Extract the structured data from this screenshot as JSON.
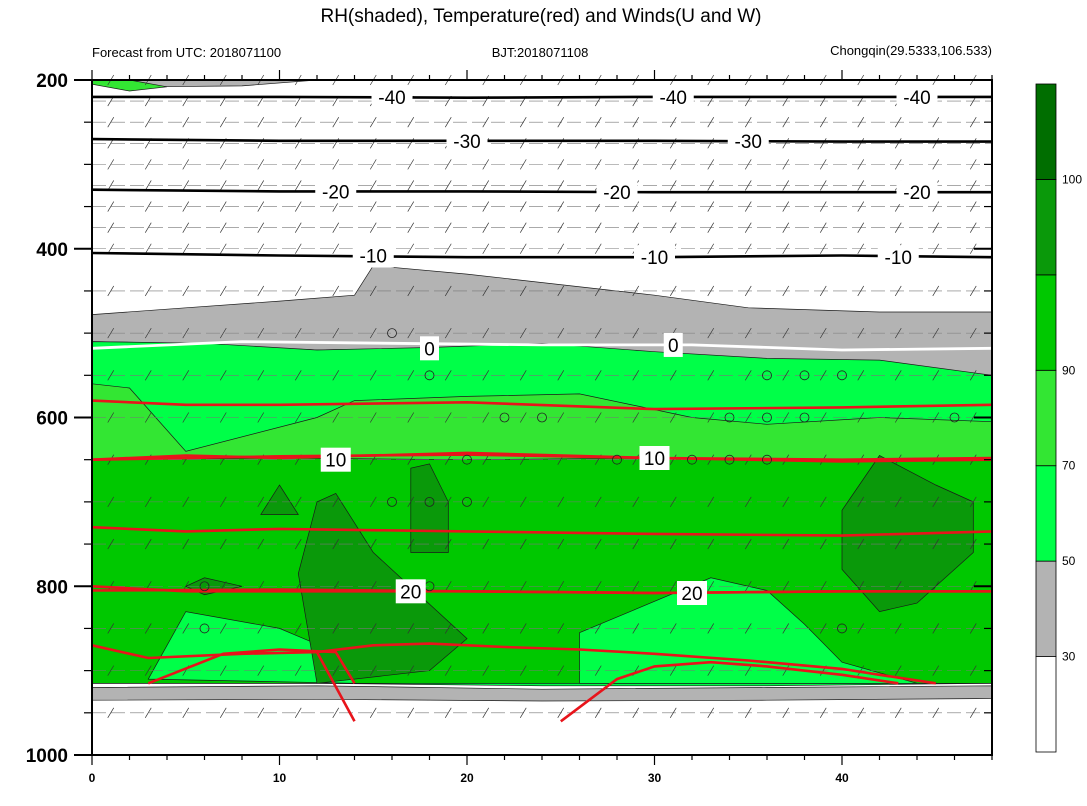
{
  "chart_data": {
    "type": "heatmap",
    "title": "RH(shaded), Temperature(red) and Winds(U and W)",
    "subtitle_left": "Forecast from UTC: 2018071100",
    "subtitle_center": "BJT:2018071108",
    "subtitle_right": "Chongqin(29.5333,106.533)",
    "x_range": [
      0,
      48
    ],
    "x_ticks": [
      0,
      10,
      20,
      30,
      40
    ],
    "y_range": [
      200,
      1000
    ],
    "y_ticks": [
      200,
      400,
      600,
      800,
      1000
    ],
    "colorbar": {
      "levels": [
        30,
        50,
        70,
        90,
        100
      ],
      "level_labels": [
        "30",
        "50",
        "70",
        "90",
        "100"
      ],
      "colors": [
        "#ffffff",
        "#b3b3b3",
        "#00ff48",
        "#33e633",
        "#00c800",
        "#0a990a",
        "#006e00"
      ]
    },
    "rh_regions": [
      {
        "class": 1,
        "points": [
          [
            0,
            200
          ],
          [
            3,
            208
          ],
          [
            8,
            207
          ],
          [
            12,
            200
          ]
        ]
      },
      {
        "class": 3,
        "points": [
          [
            0,
            200
          ],
          [
            0,
            205
          ],
          [
            2,
            213
          ],
          [
            4,
            208
          ],
          [
            2,
            200
          ]
        ]
      },
      {
        "class": 1,
        "points": [
          [
            14,
            455
          ],
          [
            15,
            420
          ],
          [
            20,
            430
          ],
          [
            30,
            455
          ],
          [
            35,
            470
          ],
          [
            42,
            475
          ],
          [
            48,
            475
          ],
          [
            48,
            550
          ],
          [
            40,
            540
          ],
          [
            32,
            535
          ],
          [
            28,
            522
          ],
          [
            18,
            518
          ],
          [
            12,
            520
          ],
          [
            9,
            517
          ],
          [
            5,
            512
          ],
          [
            0,
            510
          ],
          [
            0,
            478
          ],
          [
            5,
            470
          ],
          [
            10,
            462
          ]
        ]
      },
      {
        "class": 1,
        "points": [
          [
            0,
            920
          ],
          [
            12,
            918
          ],
          [
            24,
            922
          ],
          [
            36,
            920
          ],
          [
            48,
            918
          ],
          [
            48,
            933
          ],
          [
            36,
            935
          ],
          [
            24,
            936
          ],
          [
            12,
            934
          ],
          [
            0,
            935
          ]
        ]
      },
      {
        "class": 2,
        "points": [
          [
            0,
            510
          ],
          [
            6,
            512
          ],
          [
            12,
            520
          ],
          [
            18,
            517
          ],
          [
            24,
            512
          ],
          [
            30,
            522
          ],
          [
            36,
            530
          ],
          [
            42,
            532
          ],
          [
            48,
            550
          ],
          [
            48,
            915
          ],
          [
            36,
            918
          ],
          [
            24,
            918
          ],
          [
            12,
            915
          ],
          [
            0,
            915
          ]
        ]
      },
      {
        "class": 3,
        "points": [
          [
            0,
            560
          ],
          [
            2,
            565
          ],
          [
            5,
            640
          ],
          [
            12,
            600
          ],
          [
            14,
            580
          ],
          [
            20,
            575
          ],
          [
            26,
            572
          ],
          [
            32,
            600
          ],
          [
            36,
            608
          ],
          [
            42,
            600
          ],
          [
            48,
            605
          ],
          [
            48,
            915
          ],
          [
            0,
            915
          ]
        ]
      },
      {
        "class": 4,
        "points": [
          [
            0,
            650
          ],
          [
            10,
            648
          ],
          [
            20,
            650
          ],
          [
            30,
            648
          ],
          [
            40,
            650
          ],
          [
            48,
            650
          ],
          [
            48,
            915
          ],
          [
            0,
            915
          ]
        ]
      },
      {
        "class": 2,
        "points": [
          [
            3,
            910
          ],
          [
            5,
            830
          ],
          [
            10,
            850
          ],
          [
            13,
            878
          ],
          [
            14,
            915
          ]
        ]
      },
      {
        "class": 2,
        "points": [
          [
            26,
            855
          ],
          [
            33,
            790
          ],
          [
            36,
            805
          ],
          [
            38,
            845
          ],
          [
            40,
            890
          ],
          [
            44,
            915
          ],
          [
            26,
            915
          ]
        ]
      },
      {
        "class": 5,
        "points": [
          [
            11,
            785
          ],
          [
            12,
            700
          ],
          [
            13,
            690
          ],
          [
            15,
            760
          ],
          [
            20,
            862
          ],
          [
            18,
            900
          ],
          [
            12,
            915
          ]
        ]
      },
      {
        "class": 5,
        "points": [
          [
            17,
            760
          ],
          [
            17,
            660
          ],
          [
            18,
            655
          ],
          [
            19,
            700
          ],
          [
            19,
            760
          ]
        ]
      },
      {
        "class": 5,
        "points": [
          [
            9,
            715
          ],
          [
            10,
            680
          ],
          [
            11,
            715
          ]
        ]
      },
      {
        "class": 5,
        "points": [
          [
            5,
            800
          ],
          [
            6,
            790
          ],
          [
            8,
            800
          ],
          [
            6,
            810
          ]
        ]
      },
      {
        "class": 5,
        "points": [
          [
            40,
            710
          ],
          [
            42,
            645
          ],
          [
            45,
            680
          ],
          [
            47,
            700
          ],
          [
            47,
            760
          ],
          [
            44,
            820
          ],
          [
            42,
            830
          ],
          [
            40,
            780
          ]
        ]
      }
    ],
    "temperature_contours": [
      {
        "value": -40,
        "points": [
          [
            0,
            220
          ],
          [
            10,
            220
          ],
          [
            20,
            221
          ],
          [
            30,
            220
          ],
          [
            40,
            220
          ],
          [
            48,
            220
          ]
        ]
      },
      {
        "value": -30,
        "points": [
          [
            0,
            270
          ],
          [
            10,
            272
          ],
          [
            20,
            272
          ],
          [
            30,
            272
          ],
          [
            40,
            273
          ],
          [
            48,
            273
          ]
        ]
      },
      {
        "value": -20,
        "points": [
          [
            0,
            330
          ],
          [
            10,
            332
          ],
          [
            20,
            332
          ],
          [
            30,
            333
          ],
          [
            40,
            333
          ],
          [
            48,
            333
          ]
        ]
      },
      {
        "value": -10,
        "points": [
          [
            0,
            405
          ],
          [
            10,
            408
          ],
          [
            20,
            410
          ],
          [
            30,
            410
          ],
          [
            40,
            408
          ],
          [
            48,
            410
          ]
        ]
      },
      {
        "value": 0,
        "points": [
          [
            0,
            518
          ],
          [
            8,
            510
          ],
          [
            16,
            512
          ],
          [
            24,
            514
          ],
          [
            32,
            514
          ],
          [
            40,
            520
          ],
          [
            48,
            518
          ]
        ]
      },
      {
        "value": 10,
        "points": [
          [
            0,
            650
          ],
          [
            10,
            646
          ],
          [
            20,
            644
          ],
          [
            30,
            648
          ],
          [
            40,
            650
          ],
          [
            48,
            648
          ]
        ]
      },
      {
        "value": 20,
        "points": [
          [
            0,
            805
          ],
          [
            10,
            804
          ],
          [
            20,
            806
          ],
          [
            30,
            808
          ],
          [
            40,
            806
          ],
          [
            48,
            806
          ]
        ]
      }
    ],
    "red_lines": [
      [
        [
          0,
          580
        ],
        [
          5,
          585
        ],
        [
          10,
          585
        ],
        [
          20,
          582
        ],
        [
          30,
          590
        ],
        [
          40,
          588
        ],
        [
          48,
          585
        ]
      ],
      [
        [
          0,
          650
        ],
        [
          5,
          645
        ],
        [
          10,
          648
        ],
        [
          20,
          642
        ],
        [
          30,
          648
        ],
        [
          40,
          652
        ],
        [
          48,
          650
        ]
      ],
      [
        [
          0,
          730
        ],
        [
          5,
          735
        ],
        [
          10,
          732
        ],
        [
          20,
          735
        ],
        [
          30,
          738
        ],
        [
          40,
          740
        ],
        [
          48,
          735
        ]
      ],
      [
        [
          0,
          800
        ],
        [
          5,
          806
        ],
        [
          10,
          806
        ],
        [
          20,
          806
        ],
        [
          30,
          808
        ],
        [
          40,
          806
        ],
        [
          48,
          806
        ]
      ],
      [
        [
          0,
          870
        ],
        [
          3,
          885
        ],
        [
          8,
          880
        ],
        [
          12,
          878
        ],
        [
          15,
          870
        ],
        [
          18,
          868
        ],
        [
          22,
          872
        ],
        [
          26,
          875
        ],
        [
          30,
          880
        ],
        [
          35,
          888
        ],
        [
          40,
          898
        ],
        [
          42,
          905
        ],
        [
          45,
          915
        ]
      ],
      [
        [
          3,
          915
        ],
        [
          7,
          880
        ],
        [
          10,
          875
        ],
        [
          13,
          878
        ],
        [
          14,
          915
        ]
      ],
      [
        [
          25,
          960
        ],
        [
          28,
          910
        ],
        [
          30,
          895
        ],
        [
          33,
          890
        ],
        [
          36,
          895
        ],
        [
          40,
          905
        ],
        [
          43,
          915
        ]
      ],
      [
        [
          12,
          878
        ],
        [
          14,
          960
        ]
      ]
    ],
    "contour_labels": [
      "-40",
      "-30",
      "-20",
      "-10",
      "0",
      "10",
      "20"
    ],
    "wind_levels": [
      200,
      225,
      250,
      275,
      300,
      325,
      350,
      375,
      400,
      450,
      500,
      550,
      600,
      650,
      700,
      750,
      800,
      850,
      900,
      950
    ],
    "circle_markers": [
      [
        16,
        500
      ],
      [
        18,
        550
      ],
      [
        16,
        700
      ],
      [
        18,
        700
      ],
      [
        20,
        700
      ],
      [
        20,
        650
      ],
      [
        22,
        600
      ],
      [
        24,
        600
      ],
      [
        28,
        650
      ],
      [
        32,
        650
      ],
      [
        34,
        650
      ],
      [
        34,
        600
      ],
      [
        36,
        600
      ],
      [
        36,
        550
      ],
      [
        36,
        650
      ],
      [
        38,
        550
      ],
      [
        38,
        600
      ],
      [
        40,
        550
      ],
      [
        46,
        600
      ],
      [
        6,
        800
      ],
      [
        6,
        850
      ],
      [
        18,
        800
      ],
      [
        40,
        850
      ]
    ]
  }
}
